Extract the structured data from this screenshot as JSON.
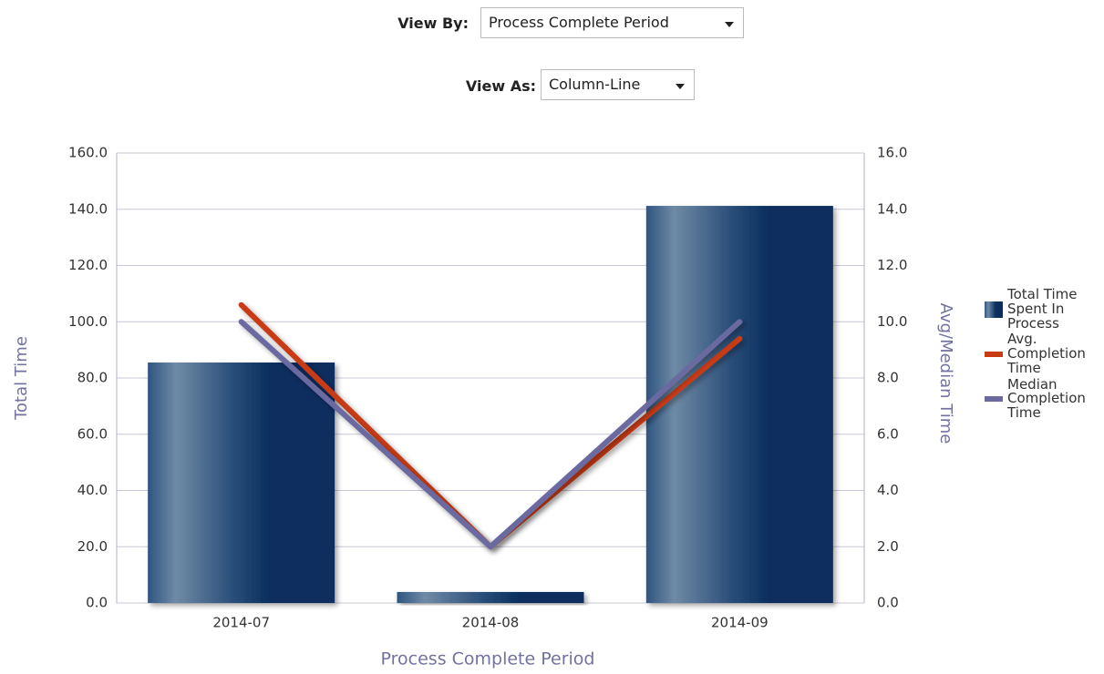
{
  "controls": [
    {
      "label": "View By:",
      "value": "Process Complete Period"
    },
    {
      "label": "View As:",
      "value": "Column-Line"
    }
  ],
  "chart_data": {
    "type": "bar-line",
    "xlabel": "Process Complete Period",
    "ylabel": "Total Time",
    "y2label": "Avg/Median Time",
    "categories": [
      "2014-07",
      "2014-08",
      "2014-09"
    ],
    "ylim": [
      0,
      160
    ],
    "yticks": [
      {
        "value": 0,
        "label": "0.0"
      },
      {
        "value": 20,
        "label": "20.0"
      },
      {
        "value": 40,
        "label": "40.0"
      },
      {
        "value": 60,
        "label": "60.0"
      },
      {
        "value": 80,
        "label": "80.0"
      },
      {
        "value": 100,
        "label": "100.0"
      },
      {
        "value": 120,
        "label": "120.0"
      },
      {
        "value": 140,
        "label": "140.0"
      },
      {
        "value": 160,
        "label": "160.0"
      }
    ],
    "y2lim": [
      0,
      16
    ],
    "y2ticks": [
      {
        "value": 0,
        "label": "0.0"
      },
      {
        "value": 2,
        "label": "2.0"
      },
      {
        "value": 4,
        "label": "4.0"
      },
      {
        "value": 6,
        "label": "6.0"
      },
      {
        "value": 8,
        "label": "8.0"
      },
      {
        "value": 10,
        "label": "10.0"
      },
      {
        "value": 12,
        "label": "12.0"
      },
      {
        "value": 14,
        "label": "14.0"
      },
      {
        "value": 16,
        "label": "16.0"
      }
    ],
    "grid": true,
    "legend": "right",
    "series": [
      {
        "name": "Total Time Spent In Process",
        "type": "bar",
        "color": "#0d3463",
        "values": [
          85.5,
          3.9,
          141.2
        ]
      },
      {
        "name": "Avg. Completion Time",
        "type": "line",
        "axis": "y2",
        "color": "#c83a12",
        "values": [
          10.6,
          2.0,
          9.4
        ]
      },
      {
        "name": "Median Completion Time",
        "type": "line",
        "axis": "y2",
        "color": "#6a6aa0",
        "values": [
          10.0,
          2.0,
          10.0
        ]
      }
    ]
  }
}
